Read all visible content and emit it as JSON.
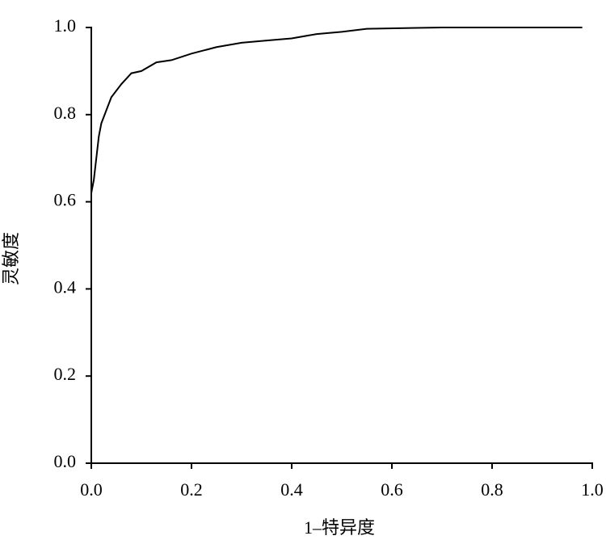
{
  "chart_data": {
    "type": "line",
    "x_label": "1–特异度",
    "y_label": "灵敏度",
    "x": [
      0,
      0.005,
      0.01,
      0.015,
      0.02,
      0.03,
      0.04,
      0.06,
      0.08,
      0.1,
      0.13,
      0.16,
      0.2,
      0.25,
      0.3,
      0.35,
      0.4,
      0.45,
      0.5,
      0.55,
      0.7,
      0.98
    ],
    "series": [
      {
        "color": "#000000",
        "values": [
          0.62,
          0.65,
          0.7,
          0.75,
          0.78,
          0.81,
          0.84,
          0.87,
          0.895,
          0.9,
          0.92,
          0.925,
          0.94,
          0.955,
          0.965,
          0.97,
          0.975,
          0.985,
          0.99,
          0.997,
          1.0,
          1.0
        ]
      }
    ],
    "xlim": [
      0,
      1
    ],
    "ylim": [
      0,
      1
    ],
    "xticks": [
      {
        "value": 0,
        "label": "0.0"
      },
      0.2,
      0.4,
      0.6,
      0.8,
      {
        "value": 1,
        "label": "1.0"
      }
    ],
    "yticks": [
      {
        "value": 0,
        "label": "0.0"
      },
      0.2,
      0.4,
      0.6,
      0.8,
      {
        "value": 1,
        "label": "1.0"
      }
    ],
    "grid": false
  }
}
